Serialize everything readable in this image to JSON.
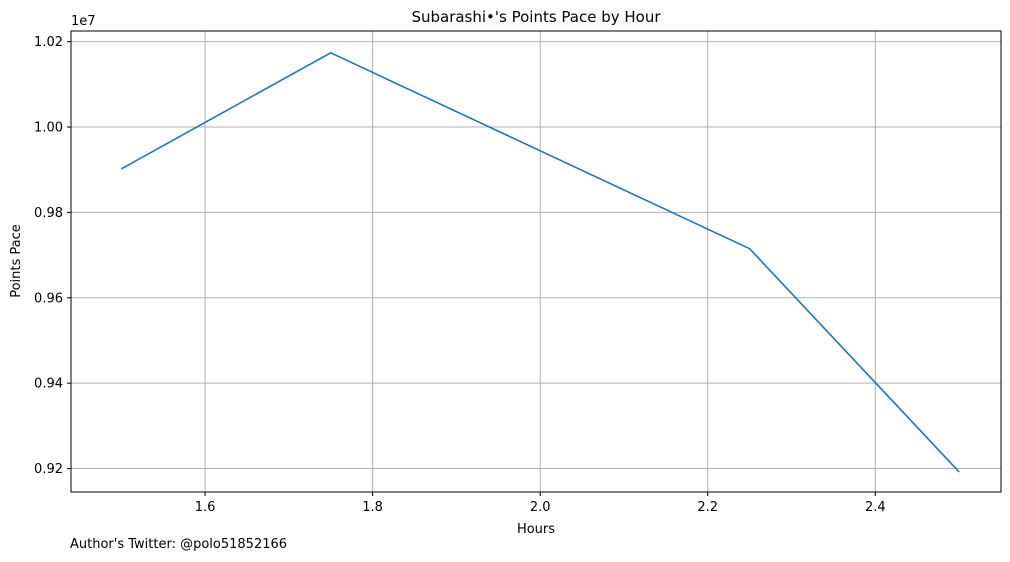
{
  "chart_data": {
    "type": "line",
    "title": "Subarashi•'s Points Pace by Hour",
    "xlabel": "Hours",
    "ylabel": "Points Pace",
    "y_offset_label": "1e7",
    "xlim": [
      1.44,
      2.55
    ],
    "ylim": [
      9.145,
      10.225
    ],
    "x_ticks": [
      1.6,
      1.8,
      2.0,
      2.2,
      2.4
    ],
    "x_tick_labels": [
      "1.6",
      "1.8",
      "2.0",
      "2.2",
      "2.4"
    ],
    "y_ticks": [
      9.2,
      9.4,
      9.6,
      9.8,
      10.0,
      10.2
    ],
    "y_tick_labels": [
      "0.92",
      "0.94",
      "0.96",
      "0.98",
      "1.00",
      "1.02"
    ],
    "grid": true,
    "series": [
      {
        "color": "#1f77b4",
        "x": [
          1.5,
          1.75,
          2.25,
          2.5
        ],
        "y": [
          9.902,
          10.174,
          9.715,
          9.192
        ]
      }
    ]
  },
  "footer": {
    "author_note": "Author's Twitter: @polo51852166"
  }
}
